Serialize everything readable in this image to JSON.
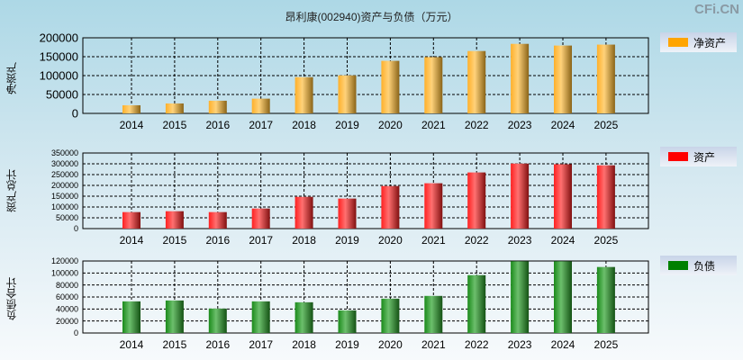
{
  "title": "昂利康(002940)资产与负债（万元）",
  "logo": "CFi.CN",
  "chart_data": [
    {
      "type": "bar",
      "title": "净资产",
      "ylabel": "净资产",
      "legend": "净资产",
      "color": "#ffa500",
      "ylim": [
        0,
        200000
      ],
      "yticks": [
        "0",
        "50000",
        "100000",
        "150000",
        "200000"
      ],
      "categories": [
        "2014",
        "2015",
        "2016",
        "2017",
        "2018",
        "2019",
        "2020",
        "2021",
        "2022",
        "2023",
        "2024",
        "2025"
      ],
      "values": [
        21500,
        26300,
        33500,
        39000,
        95800,
        100600,
        139000,
        149000,
        165000,
        184000,
        179500,
        182000
      ]
    },
    {
      "type": "bar",
      "title": "资产",
      "ylabel": "资产总计",
      "legend": "资产",
      "color": "#ff0000",
      "ylim": [
        0,
        350000
      ],
      "yticks": [
        "0",
        "50000",
        "100000",
        "150000",
        "200000",
        "250000",
        "300000",
        "350000"
      ],
      "categories": [
        "2014",
        "2015",
        "2016",
        "2017",
        "2018",
        "2019",
        "2020",
        "2021",
        "2022",
        "2023",
        "2024",
        "2025"
      ],
      "values": [
        76400,
        80500,
        76400,
        93000,
        147000,
        139000,
        197000,
        210000,
        260000,
        301000,
        298000,
        293000
      ]
    },
    {
      "type": "bar",
      "title": "负债",
      "ylabel": "负债合计",
      "legend": "负债",
      "color": "#008000",
      "ylim": [
        0,
        120000
      ],
      "yticks": [
        "0",
        "20000",
        "40000",
        "60000",
        "80000",
        "100000",
        "120000"
      ],
      "categories": [
        "2014",
        "2015",
        "2016",
        "2017",
        "2018",
        "2019",
        "2020",
        "2021",
        "2022",
        "2023",
        "2024",
        "2025"
      ],
      "values": [
        52700,
        54200,
        40700,
        52700,
        51200,
        37700,
        57200,
        61800,
        96400,
        119500,
        119500,
        110000
      ]
    }
  ]
}
